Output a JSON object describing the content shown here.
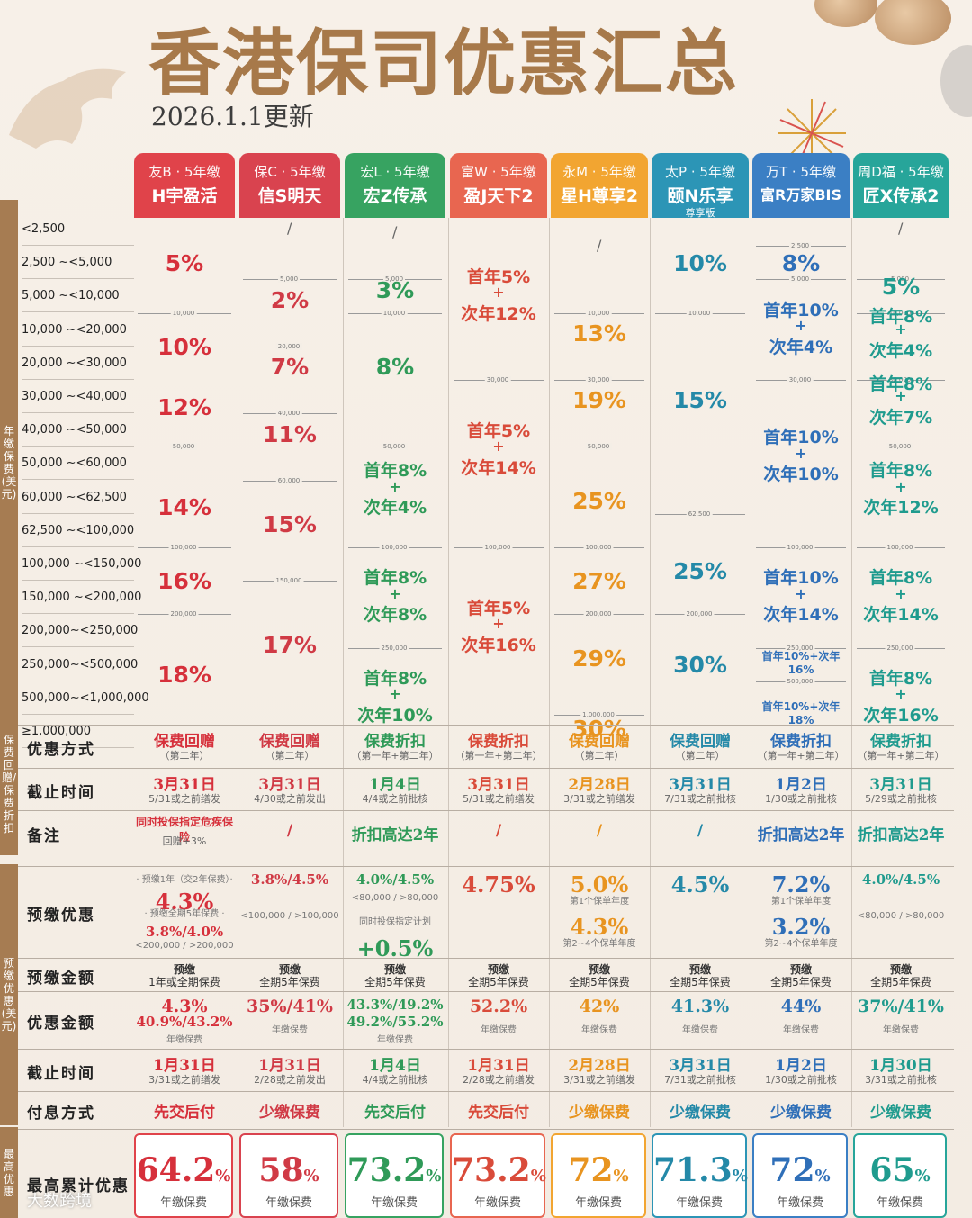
{
  "title": "香港保司优惠汇总",
  "date": "2026.1.1更新",
  "watermark": "大数跨境",
  "sidebars": {
    "annual": "年缴保费(美元)",
    "gift": "保费回赠/保费折扣",
    "prepay": "预缴优惠(美元)",
    "max": "最高优惠"
  },
  "colors": [
    "#e0434a",
    "#d9434f",
    "#37a361",
    "#e86650",
    "#f2a531",
    "#2c95b6",
    "#3b7fc4",
    "#27a59a"
  ],
  "text_colors": [
    "#d6303b",
    "#d03a45",
    "#2f9a58",
    "#d94b3a",
    "#e89420",
    "#2489a8",
    "#2f6fb8",
    "#1f9b8e"
  ],
  "headers": [
    {
      "co": "友B · 5年缴",
      "pr": "H宇盈活"
    },
    {
      "co": "保C · 5年缴",
      "pr": "信S明天"
    },
    {
      "co": "宏L · 5年缴",
      "pr": "宏Z传承"
    },
    {
      "co": "富W · 5年缴",
      "pr": "盈J天下2"
    },
    {
      "co": "永M · 5年缴",
      "pr": "星H尊享2"
    },
    {
      "co": "太P · 5年缴",
      "pr": "颐N乐享",
      "sub": "尊享版"
    },
    {
      "co": "万T · 5年缴",
      "pr": "富R万家BIS"
    },
    {
      "co": "周D福 · 5年缴",
      "pr": "匠X传承2"
    }
  ],
  "tiers": [
    "<2,500",
    "2,500   ~<5,000",
    "5,000   ~<10,000",
    "10,000  ~<20,000",
    "20,000  ~<30,000",
    "30,000  ~<40,000",
    "40,000  ~<50,000",
    "50,000  ~<60,000",
    "60,000  ~<62,500",
    "62,500  ~<100,000",
    "100,000 ~<150,000",
    "150,000 ~<200,000",
    "200,000~<250,000",
    "250,000~<500,000",
    "500,000~<1,000,000",
    "≥1,000,000"
  ],
  "tier_cells": [
    [
      {
        "t": "5%",
        "r": 1.5
      },
      {
        "t": "10%",
        "r": 4
      },
      {
        "t": "12%",
        "r": 5.8
      },
      {
        "t": "14%",
        "r": 8.8
      },
      {
        "t": "16%",
        "r": 11
      },
      {
        "t": "18%",
        "r": 13.8
      }
    ],
    [
      {
        "t": "/",
        "r": 0.6,
        "s": 1
      },
      {
        "t": "2%",
        "r": 2.6
      },
      {
        "t": "7%",
        "r": 4.6
      },
      {
        "t": "11%",
        "r": 6.6
      },
      {
        "t": "15%",
        "r": 9.3
      },
      {
        "t": "17%",
        "r": 12.9
      }
    ],
    [
      {
        "t": "/",
        "r": 0.7,
        "s": 1
      },
      {
        "t": "3%",
        "r": 2.3
      },
      {
        "t": "8%",
        "r": 4.6
      },
      {
        "t": "首年8%",
        "r": 7.7,
        "m": 1
      },
      {
        "t": "+",
        "r": 8.3,
        "m": 2
      },
      {
        "t": "次年4%",
        "r": 8.8,
        "m": 1
      },
      {
        "t": "首年8%",
        "r": 10.9,
        "m": 1
      },
      {
        "t": "+",
        "r": 11.5,
        "m": 2
      },
      {
        "t": "次年8%",
        "r": 12.0,
        "m": 1
      },
      {
        "t": "首年8%",
        "r": 13.9,
        "m": 1
      },
      {
        "t": "+",
        "r": 14.5,
        "m": 2
      },
      {
        "t": "次年10%",
        "r": 15.0,
        "m": 1
      }
    ],
    [
      {
        "t": "首年5%",
        "r": 1.9,
        "m": 1
      },
      {
        "t": "+",
        "r": 2.5,
        "m": 2
      },
      {
        "t": "次年12%",
        "r": 3.0,
        "m": 1
      },
      {
        "t": "首年5%",
        "r": 6.5,
        "m": 1
      },
      {
        "t": "+",
        "r": 7.1,
        "m": 2
      },
      {
        "t": "次年14%",
        "r": 7.6,
        "m": 1
      },
      {
        "t": "首年5%",
        "r": 11.8,
        "m": 1
      },
      {
        "t": "+",
        "r": 12.4,
        "m": 2
      },
      {
        "t": "次年16%",
        "r": 12.9,
        "m": 1
      }
    ],
    [
      {
        "t": "/",
        "r": 1.1,
        "s": 1
      },
      {
        "t": "13%",
        "r": 3.6
      },
      {
        "t": "19%",
        "r": 5.6
      },
      {
        "t": "25%",
        "r": 8.6
      },
      {
        "t": "27%",
        "r": 11
      },
      {
        "t": "29%",
        "r": 13.3
      },
      {
        "t": "30%",
        "r": 15.4
      }
    ],
    [
      {
        "t": "10%",
        "r": 1.5
      },
      {
        "t": "15%",
        "r": 5.6
      },
      {
        "t": "25%",
        "r": 10.7
      },
      {
        "t": "30%",
        "r": 13.5
      }
    ],
    [
      {
        "t": "8%",
        "r": 1.5
      },
      {
        "t": "首年10%",
        "r": 2.9,
        "m": 1
      },
      {
        "t": "+",
        "r": 3.5,
        "m": 2
      },
      {
        "t": "次年4%",
        "r": 4.0,
        "m": 1
      },
      {
        "t": "首年10%",
        "r": 6.7,
        "m": 1
      },
      {
        "t": "+",
        "r": 7.3,
        "m": 2
      },
      {
        "t": "次年10%",
        "r": 7.8,
        "m": 1
      },
      {
        "t": "首年10%",
        "r": 10.9,
        "m": 1
      },
      {
        "t": "+",
        "r": 11.5,
        "m": 2
      },
      {
        "t": "次年14%",
        "r": 12.0,
        "m": 1
      },
      {
        "t": "首年10%+次年16%",
        "r": 13.4,
        "x": 1
      },
      {
        "t": "首年10%+次年18%",
        "r": 14.9,
        "x": 1
      }
    ],
    [
      {
        "t": "/",
        "r": 0.6,
        "s": 1
      },
      {
        "t": "5%",
        "r": 2.2
      },
      {
        "t": "首年8%",
        "r": 3.1,
        "m": 1
      },
      {
        "t": "+",
        "r": 3.6,
        "m": 2
      },
      {
        "t": "次年4%",
        "r": 4.1,
        "m": 1
      },
      {
        "t": "首年8%",
        "r": 5.1,
        "m": 1
      },
      {
        "t": "+",
        "r": 5.6,
        "m": 2
      },
      {
        "t": "次年7%",
        "r": 6.1,
        "m": 1
      },
      {
        "t": "首年8%",
        "r": 7.7,
        "m": 1
      },
      {
        "t": "+",
        "r": 8.3,
        "m": 2
      },
      {
        "t": "次年12%",
        "r": 8.8,
        "m": 1
      },
      {
        "t": "首年8%",
        "r": 10.9,
        "m": 1
      },
      {
        "t": "+",
        "r": 11.5,
        "m": 2
      },
      {
        "t": "次年14%",
        "r": 12.0,
        "m": 1
      },
      {
        "t": "首年8%",
        "r": 13.9,
        "m": 1
      },
      {
        "t": "+",
        "r": 14.5,
        "m": 2
      },
      {
        "t": "次年16%",
        "r": 15.0,
        "m": 1
      }
    ]
  ],
  "seps": [
    [
      [
        "10,000",
        3
      ],
      [
        "50,000",
        7
      ],
      [
        "100,000",
        10
      ],
      [
        "200,000",
        12
      ]
    ],
    [
      [
        "5,000",
        2
      ],
      [
        "20,000",
        4
      ],
      [
        "40,000",
        6
      ],
      [
        "60,000",
        8
      ],
      [
        "150,000",
        11
      ]
    ],
    [
      [
        "5,000",
        2
      ],
      [
        "10,000",
        3
      ],
      [
        "50,000",
        7
      ],
      [
        "100,000",
        10
      ],
      [
        "250,000",
        13
      ]
    ],
    [
      [
        "30,000",
        5
      ],
      [
        "100,000",
        10
      ]
    ],
    [
      [
        "10,000",
        3
      ],
      [
        "30,000",
        5
      ],
      [
        "50,000",
        7
      ],
      [
        "100,000",
        10
      ],
      [
        "200,000",
        12
      ],
      [
        "1,000,000",
        15
      ]
    ],
    [
      [
        "10,000",
        3
      ],
      [
        "62,500",
        9
      ],
      [
        "200,000",
        12
      ]
    ],
    [
      [
        "2,500",
        1
      ],
      [
        "5,000",
        2
      ],
      [
        "30,000",
        5
      ],
      [
        "100,000",
        10
      ],
      [
        "250,000",
        13
      ],
      [
        "500,000",
        14
      ]
    ],
    [
      [
        "5,000",
        2
      ],
      [
        "10,000",
        3
      ],
      [
        "30,000",
        5
      ],
      [
        "50,000",
        7
      ],
      [
        "100,000",
        10
      ],
      [
        "250,000",
        13
      ]
    ]
  ],
  "labels": {
    "method": "优惠方式",
    "deadline": "截止时间",
    "note": "备注",
    "prepay": "预缴优惠",
    "prepay_amt": "预缴金额",
    "discount_amt": "优惠金额",
    "deadline2": "截止时间",
    "pay": "付息方式",
    "max": "最高累计优惠"
  },
  "method": [
    {
      "a": "保费回赠",
      "b": "（第二年）"
    },
    {
      "a": "保费回赠",
      "b": "（第二年）"
    },
    {
      "a": "保费折扣",
      "b": "（第一年+第二年）"
    },
    {
      "a": "保费折扣",
      "b": "（第一年+第二年）"
    },
    {
      "a": "保费回赠",
      "b": "（第二年）"
    },
    {
      "a": "保费回赠",
      "b": "（第二年）"
    },
    {
      "a": "保费折扣",
      "b": "（第一年+第二年）"
    },
    {
      "a": "保费折扣",
      "b": "（第一年+第二年）"
    }
  ],
  "deadline": [
    {
      "a": "3月31日",
      "b": "5/31或之前缮发"
    },
    {
      "a": "3月31日",
      "b": "4/30或之前发出"
    },
    {
      "a": "1月4日",
      "b": "4/4或之前批核"
    },
    {
      "a": "3月31日",
      "b": "5/31或之前缮发"
    },
    {
      "a": "2月28日",
      "b": "3/31或之前缮发"
    },
    {
      "a": "3月31日",
      "b": "7/31或之前批核"
    },
    {
      "a": "1月2日",
      "b": "1/30或之前批核"
    },
    {
      "a": "3月31日",
      "b": "5/29或之前批核"
    }
  ],
  "note": [
    {
      "a": "同时投保指定危疾保险",
      "b": "回赠+3%"
    },
    {
      "a": "/"
    },
    {
      "a": "折扣高达2年"
    },
    {
      "a": "/"
    },
    {
      "a": "/"
    },
    {
      "a": "/"
    },
    {
      "a": "折扣高达2年"
    },
    {
      "a": "折扣高达2年"
    }
  ],
  "prepay": [
    {
      "l": [
        "· 预缴1年（交2年保费）·",
        "4.3%",
        "· 预缴全期5年保费 ·",
        "3.8%/4.0%",
        "<200,000 / >200,000"
      ]
    },
    {
      "l": [
        "3.8%/4.5%",
        "<100,000 / >100,000"
      ]
    },
    {
      "l": [
        "4.0%/4.5%",
        "<80,000 / >80,000",
        "同时投保指定计划",
        "+0.5%"
      ]
    },
    {
      "l": [
        "4.75%"
      ]
    },
    {
      "l": [
        "5.0%",
        "第1个保单年度",
        "4.3%",
        "第2~4个保单年度"
      ]
    },
    {
      "l": [
        "4.5%"
      ]
    },
    {
      "l": [
        "7.2%",
        "第1个保单年度",
        "3.2%",
        "第2~4个保单年度"
      ]
    },
    {
      "l": [
        "4.0%/4.5%",
        "<80,000 / >80,000"
      ]
    }
  ],
  "prepay_amt": [
    {
      "a": "预缴",
      "b": "1年或全期保费"
    },
    {
      "a": "预缴",
      "b": "全期5年保费"
    },
    {
      "a": "预缴",
      "b": "全期5年保费"
    },
    {
      "a": "预缴",
      "b": "全期5年保费"
    },
    {
      "a": "预缴",
      "b": "全期5年保费"
    },
    {
      "a": "预缴",
      "b": "全期5年保费"
    },
    {
      "a": "预缴",
      "b": "全期5年保费"
    },
    {
      "a": "预缴",
      "b": "全期5年保费"
    }
  ],
  "discount_amt": [
    {
      "l": [
        "4.3%",
        "40.9%/43.2%",
        "年缴保费"
      ]
    },
    {
      "l": [
        "35%/41%",
        "年缴保费"
      ]
    },
    {
      "l": [
        "43.3%/49.2%",
        "49.2%/55.2%",
        "年缴保费"
      ]
    },
    {
      "l": [
        "52.2%",
        "年缴保费"
      ]
    },
    {
      "l": [
        "42%",
        "年缴保费"
      ]
    },
    {
      "l": [
        "41.3%",
        "年缴保费"
      ]
    },
    {
      "l": [
        "44%",
        "年缴保费"
      ]
    },
    {
      "l": [
        "37%/41%",
        "年缴保费"
      ]
    }
  ],
  "deadline2": [
    {
      "a": "1月31日",
      "b": "3/31或之前缮发"
    },
    {
      "a": "1月31日",
      "b": "2/28或之前发出"
    },
    {
      "a": "1月4日",
      "b": "4/4或之前批核"
    },
    {
      "a": "1月31日",
      "b": "2/28或之前缮发"
    },
    {
      "a": "2月28日",
      "b": "3/31或之前缮发"
    },
    {
      "a": "3月31日",
      "b": "7/31或之前批核"
    },
    {
      "a": "1月2日",
      "b": "1/30或之前批核"
    },
    {
      "a": "1月30日",
      "b": "3/31或之前批核"
    }
  ],
  "pay": [
    "先交后付",
    "少缴保费",
    "先交后付",
    "先交后付",
    "少缴保费",
    "少缴保费",
    "少缴保费",
    "少缴保费"
  ],
  "max": [
    {
      "v": "64.2",
      "u": "%",
      "l": "年缴保费"
    },
    {
      "v": "58",
      "u": "%",
      "l": "年缴保费"
    },
    {
      "v": "73.2",
      "u": "%",
      "l": "年缴保费"
    },
    {
      "v": "73.2",
      "u": "%",
      "l": "年缴保费"
    },
    {
      "v": "72",
      "u": "%",
      "l": "年缴保费"
    },
    {
      "v": "71.3",
      "u": "%",
      "l": "年缴保费"
    },
    {
      "v": "72",
      "u": "%",
      "l": "年缴保费"
    },
    {
      "v": "65",
      "u": "%",
      "l": "年缴保费"
    }
  ]
}
